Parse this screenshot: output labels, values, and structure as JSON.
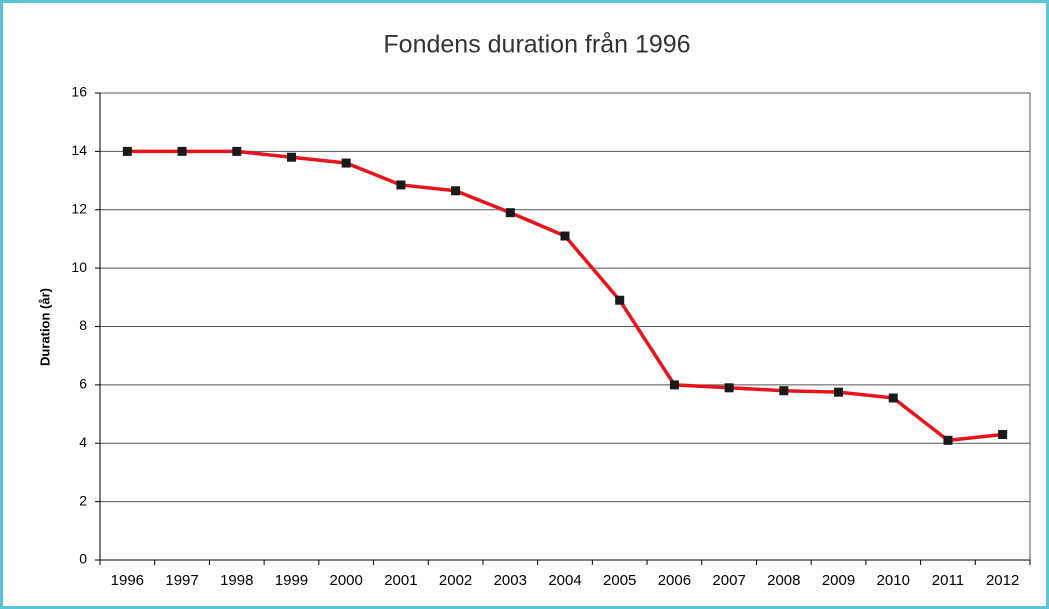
{
  "chart_data": {
    "type": "line",
    "title": "Fondens duration från 1996",
    "y_label": "Duration (år)",
    "categories": [
      "1996",
      "1997",
      "1998",
      "1999",
      "2000",
      "2001",
      "2002",
      "2003",
      "2004",
      "2005",
      "2006",
      "2007",
      "2008",
      "2009",
      "2010",
      "2011",
      "2012"
    ],
    "series": [
      {
        "name": "Duration",
        "color": "#e8141c",
        "marker_color": "#1a1a1a",
        "values": [
          14.0,
          14.0,
          14.0,
          13.8,
          13.6,
          12.85,
          12.65,
          11.9,
          11.1,
          8.9,
          6.0,
          5.9,
          5.8,
          5.75,
          5.55,
          4.1,
          4.3
        ]
      }
    ],
    "ylim": [
      0,
      16
    ],
    "yticks": [
      0,
      2,
      4,
      6,
      8,
      10,
      12,
      14,
      16
    ],
    "grid": true
  }
}
